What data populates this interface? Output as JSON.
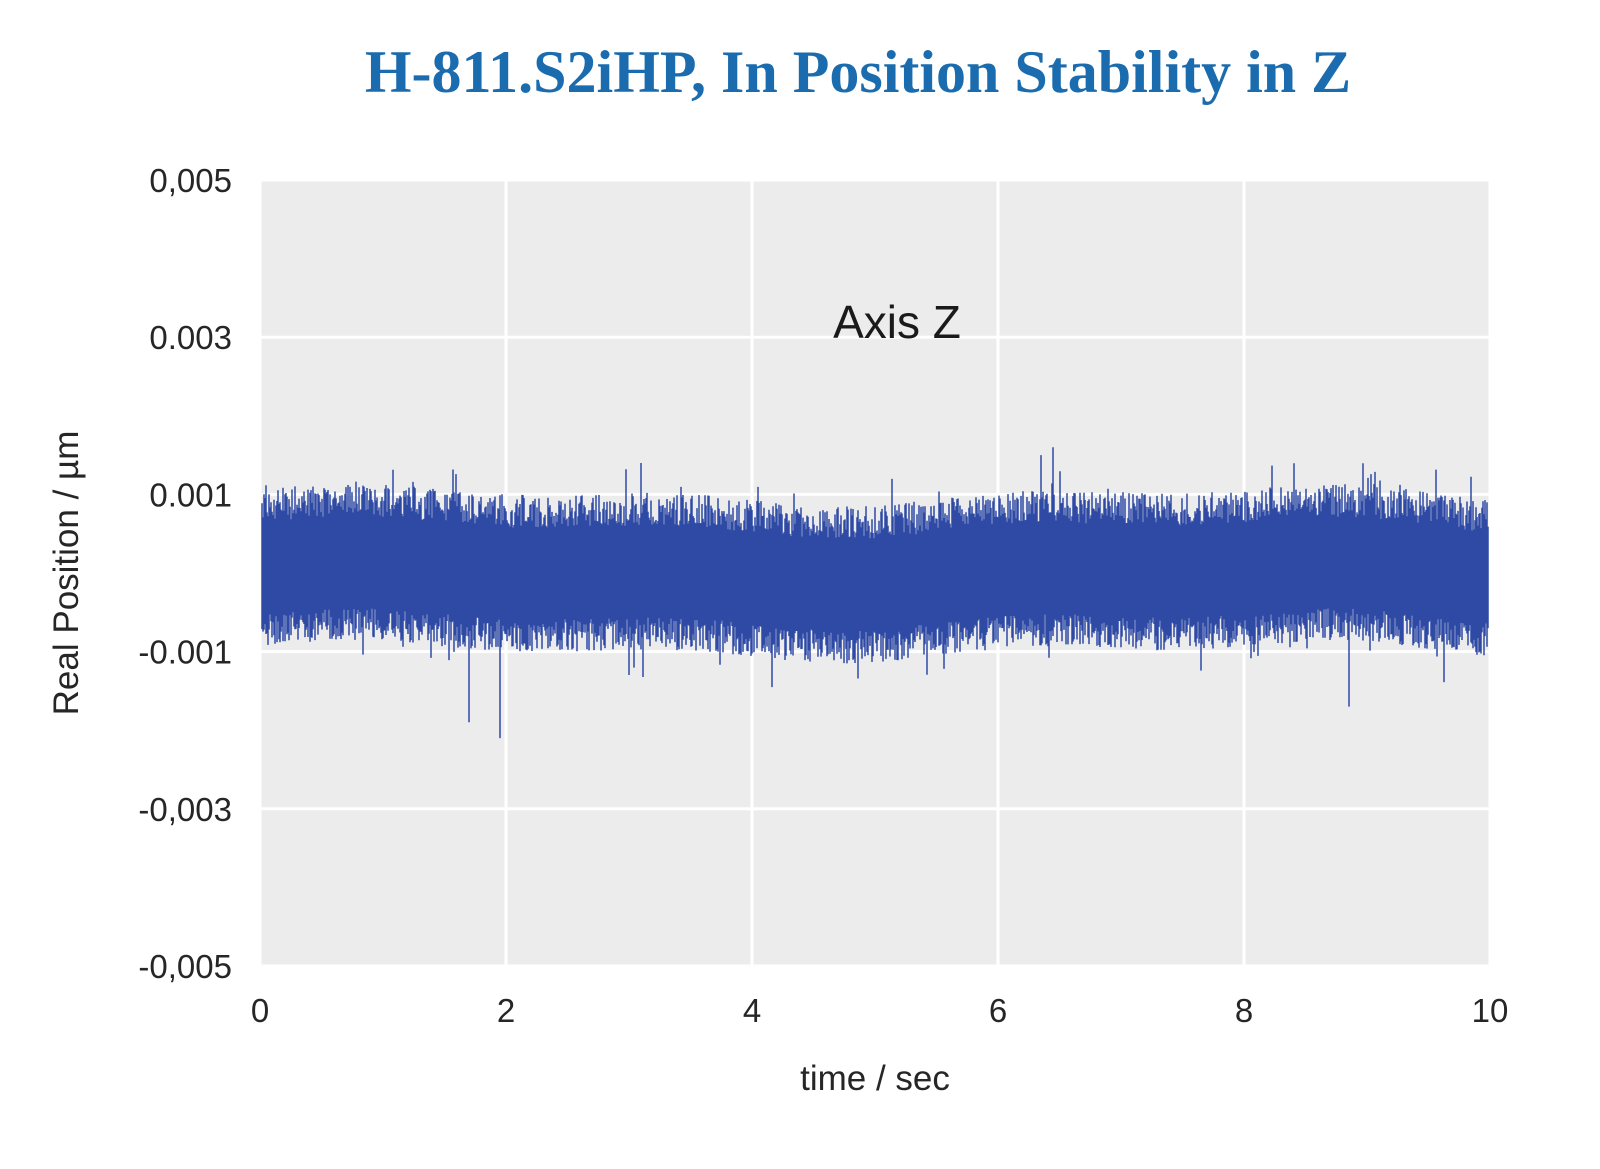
{
  "chart_data": {
    "type": "line",
    "title": "H-811.S2iHP, In Position Stability in Z",
    "annotation": "Axis Z",
    "xlabel": "time / sec",
    "ylabel": "Real Position / µm",
    "xlim": [
      0,
      10
    ],
    "ylim": [
      -0.005,
      0.005
    ],
    "grid": true,
    "legend": "none",
    "xticks": [
      {
        "label": "0",
        "value": 0
      },
      {
        "label": "2",
        "value": 2
      },
      {
        "label": "4",
        "value": 4
      },
      {
        "label": "6",
        "value": 6
      },
      {
        "label": "8",
        "value": 8
      },
      {
        "label": "10",
        "value": 10
      }
    ],
    "yticks": [
      {
        "label": "0,005",
        "value": 0.005
      },
      {
        "label": "0.003",
        "value": 0.003
      },
      {
        "label": "0.001",
        "value": 0.001
      },
      {
        "label": "-0.001",
        "value": -0.001
      },
      {
        "label": "-0,003",
        "value": -0.003
      },
      {
        "label": "-0,005",
        "value": -0.005
      }
    ],
    "series": [
      {
        "name": "Axis Z",
        "description": "High-frequency in-position noise band, mean 0 µm, typical envelope ±0.001 µm",
        "noise_band": {
          "mean": 0,
          "typical_peak": 0.001,
          "typical_trough": -0.001,
          "max": 0.0016,
          "min": -0.002
        },
        "synthesis": {
          "seed": 42,
          "base_amplitude": 0.00058,
          "amplitude_variation": 0.00042,
          "spike_probability": 0.05,
          "spike_extra": 0.0004,
          "anomalies": [
            {
              "t": 1.7,
              "value": -0.0019
            },
            {
              "t": 1.95,
              "value": -0.0021
            },
            {
              "t": 3.1,
              "value": 0.0014
            },
            {
              "t": 6.35,
              "value": 0.0015
            },
            {
              "t": 6.45,
              "value": 0.0016
            },
            {
              "t": 8.85,
              "value": -0.0017
            }
          ]
        }
      }
    ],
    "colors": {
      "trace": "#2e4aa5",
      "plot_bg": "#ececec",
      "grid": "#ffffff",
      "title": "#1b6cae",
      "text": "#262626"
    }
  }
}
